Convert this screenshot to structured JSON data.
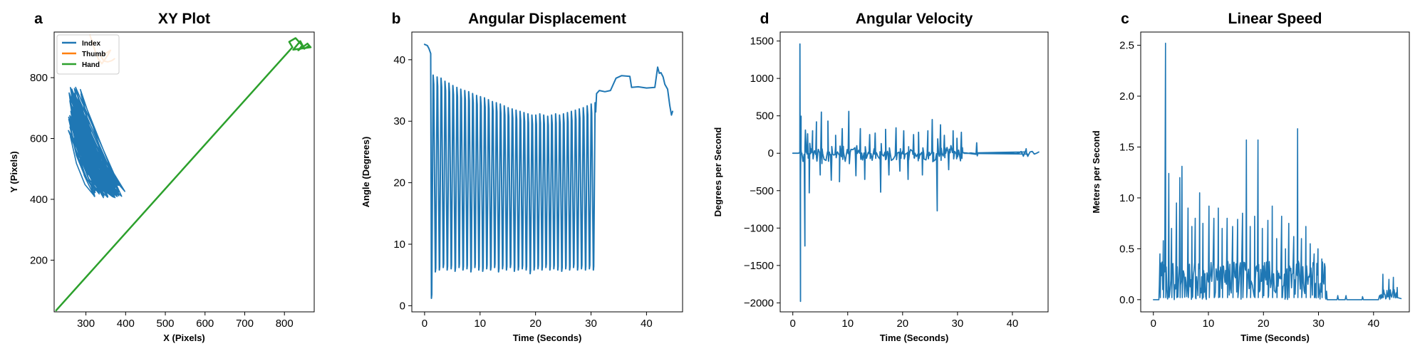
{
  "chart_data": [
    {
      "type": "line",
      "panel_letter": "a",
      "title": "XY Plot",
      "xlabel": "X (Pixels)",
      "ylabel": "Y (Pixels)",
      "xlim": [
        220,
        875
      ],
      "ylim": [
        30,
        950
      ],
      "xticks": [
        300,
        400,
        500,
        600,
        700,
        800
      ],
      "yticks": [
        200,
        400,
        600,
        800
      ],
      "legend": "top-left",
      "series": [
        {
          "name": "Index",
          "color": "#1f77b4",
          "kind": "index-band"
        },
        {
          "name": "Thumb",
          "color": "#ff7f0e",
          "points": [
            [
              310,
              940
            ],
            [
              318,
              910
            ],
            [
              325,
              880
            ],
            [
              332,
              860
            ],
            [
              340,
              846
            ],
            [
              348,
              860
            ],
            [
              356,
              876
            ],
            [
              362,
              890
            ],
            [
              350,
              880
            ],
            [
              338,
              870
            ],
            [
              345,
              855
            ],
            [
              355,
              852
            ],
            [
              365,
              856
            ],
            [
              372,
              862
            ]
          ]
        },
        {
          "name": "Hand",
          "color": "#2ca02c",
          "points": [
            [
              225,
              35
            ],
            [
              820,
              900
            ],
            [
              812,
              918
            ],
            [
              828,
              930
            ],
            [
              845,
              906
            ],
            [
              835,
              890
            ],
            [
              858,
              912
            ],
            [
              866,
              900
            ],
            [
              822,
              892
            ],
            [
              840,
              920
            ],
            [
              850,
              895
            ],
            [
              862,
              905
            ]
          ]
        }
      ]
    },
    {
      "type": "line",
      "panel_letter": "b",
      "title": "Angular Displacement",
      "xlabel": "Time (Seconds)",
      "ylabel": "Angle (Degrees)",
      "xlim": [
        -2.3,
        46.5
      ],
      "ylim": [
        -1,
        44.5
      ],
      "xticks": [
        0,
        10,
        20,
        30,
        40
      ],
      "yticks": [
        0,
        10,
        20,
        30,
        40
      ],
      "color": "#1f77b4",
      "start": [
        [
          0,
          42.5
        ],
        [
          0.5,
          42.3
        ],
        [
          0.8,
          41.8
        ],
        [
          1.1,
          41
        ]
      ],
      "oscillation": {
        "t_start": 1.1,
        "t_end": 31.0,
        "cycles": 42,
        "peaks": [
          37.5,
          37.2,
          37,
          36.5,
          36.2,
          35.8,
          35.5,
          35.2,
          35,
          34.8,
          34.5,
          34.2,
          34,
          33.8,
          33.5,
          33.2,
          33,
          32.8,
          32.5,
          32.2,
          32,
          31.8,
          31.6,
          31.4,
          31.2,
          31,
          31,
          31.2,
          31,
          30.8,
          31,
          31.2,
          31,
          31.2,
          31.4,
          31.6,
          31.8,
          32,
          32.2,
          32.5,
          32.8,
          33
        ],
        "troughs": [
          1.2,
          5.5,
          5.8,
          6.2,
          5.8,
          6,
          5.6,
          6.2,
          5.8,
          6,
          5.5,
          6.2,
          5.8,
          5.6,
          6,
          5.8,
          6.2,
          5.5,
          6,
          5.8,
          6.2,
          5.6,
          5.8,
          6,
          5.8,
          5.2,
          5.8,
          6,
          5.8,
          6.2,
          5.8,
          6,
          5.8,
          5.6,
          6,
          5.8,
          6.2,
          5.8,
          6,
          5.8,
          6,
          5.8
        ]
      },
      "tail": [
        [
          31.0,
          34.5
        ],
        [
          31.5,
          35.0
        ],
        [
          32.5,
          34.8
        ],
        [
          33.5,
          35.0
        ],
        [
          34.5,
          37.0
        ],
        [
          35.5,
          37.4
        ],
        [
          37.0,
          37.3
        ],
        [
          37.3,
          35.5
        ],
        [
          38.5,
          35.6
        ],
        [
          40.0,
          35.4
        ],
        [
          41.5,
          35.5
        ],
        [
          42.0,
          38.8
        ],
        [
          42.3,
          37.8
        ],
        [
          42.6,
          37.9
        ],
        [
          43.0,
          37.2
        ],
        [
          43.3,
          36.0
        ],
        [
          43.8,
          35.2
        ],
        [
          44.2,
          32.5
        ],
        [
          44.5,
          31.0
        ],
        [
          44.7,
          31.6
        ]
      ]
    },
    {
      "type": "line",
      "panel_letter": "d",
      "title": "Angular Velocity",
      "xlabel": "Time (Seconds)",
      "ylabel": "Degrees per Second",
      "xlim": [
        -2.3,
        46.5
      ],
      "ylim": [
        -2120,
        1620
      ],
      "xticks": [
        0,
        10,
        20,
        30,
        40
      ],
      "yticks": [
        -2000,
        -1500,
        -1000,
        -500,
        0,
        500,
        1000,
        1500
      ],
      "color": "#1f77b4",
      "spikes": [
        [
          1.3,
          1460
        ],
        [
          1.4,
          -1980
        ],
        [
          2.2,
          -1240
        ],
        [
          2.7,
          260
        ],
        [
          3.0,
          -530
        ],
        [
          3.6,
          300
        ],
        [
          4.3,
          420
        ],
        [
          5.0,
          -290
        ],
        [
          5.2,
          550
        ],
        [
          6.4,
          430
        ],
        [
          7.0,
          -360
        ],
        [
          7.8,
          240
        ],
        [
          8.5,
          -380
        ],
        [
          9.0,
          330
        ],
        [
          10.2,
          560
        ],
        [
          11.5,
          -300
        ],
        [
          12.3,
          330
        ],
        [
          13.1,
          -350
        ],
        [
          14.0,
          250
        ],
        [
          15.0,
          270
        ],
        [
          16.0,
          -520
        ],
        [
          16.9,
          320
        ],
        [
          17.5,
          -290
        ],
        [
          18.8,
          340
        ],
        [
          19.5,
          -240
        ],
        [
          20.2,
          300
        ],
        [
          21.0,
          -350
        ],
        [
          22.0,
          250
        ],
        [
          22.9,
          280
        ],
        [
          23.6,
          -290
        ],
        [
          24.6,
          300
        ],
        [
          25.4,
          450
        ],
        [
          26.3,
          -770
        ],
        [
          26.9,
          380
        ],
        [
          27.6,
          240
        ],
        [
          28.4,
          -220
        ],
        [
          29.2,
          300
        ],
        [
          29.9,
          200
        ],
        [
          30.7,
          280
        ],
        [
          33.5,
          140
        ],
        [
          42.5,
          60
        ]
      ]
    },
    {
      "type": "line",
      "panel_letter": "c",
      "title": "Linear Speed",
      "xlabel": "Time (Seconds)",
      "ylabel": "Meters per Second",
      "xlim": [
        -2.3,
        46.5
      ],
      "ylim": [
        -0.12,
        2.63
      ],
      "xticks": [
        0,
        10,
        20,
        30,
        40
      ],
      "yticks": [
        0.0,
        0.5,
        1.0,
        1.5,
        2.0,
        2.5
      ],
      "color": "#1f77b4",
      "peaks": [
        [
          1.2,
          0.45
        ],
        [
          1.8,
          0.58
        ],
        [
          2.2,
          2.52
        ],
        [
          2.8,
          1.24
        ],
        [
          3.3,
          0.7
        ],
        [
          4.2,
          0.95
        ],
        [
          4.8,
          1.2
        ],
        [
          5.2,
          1.31
        ],
        [
          6.3,
          0.9
        ],
        [
          7.0,
          0.72
        ],
        [
          7.6,
          0.8
        ],
        [
          8.4,
          1.05
        ],
        [
          9.0,
          0.75
        ],
        [
          10.1,
          0.92
        ],
        [
          11.0,
          0.8
        ],
        [
          11.8,
          0.9
        ],
        [
          12.5,
          0.7
        ],
        [
          13.4,
          0.8
        ],
        [
          14.4,
          0.72
        ],
        [
          15.3,
          0.79
        ],
        [
          16.2,
          0.85
        ],
        [
          16.9,
          1.57
        ],
        [
          17.6,
          0.72
        ],
        [
          18.4,
          0.82
        ],
        [
          19.0,
          1.57
        ],
        [
          19.8,
          0.7
        ],
        [
          20.8,
          0.78
        ],
        [
          21.6,
          0.92
        ],
        [
          22.4,
          0.6
        ],
        [
          23.3,
          0.82
        ],
        [
          24.0,
          0.5
        ],
        [
          24.6,
          0.75
        ],
        [
          25.5,
          0.62
        ],
        [
          26.2,
          1.68
        ],
        [
          26.9,
          0.6
        ],
        [
          27.7,
          0.72
        ],
        [
          28.5,
          0.55
        ],
        [
          29.2,
          0.45
        ],
        [
          29.9,
          0.5
        ],
        [
          30.6,
          0.4
        ],
        [
          31.2,
          0.32
        ],
        [
          33.5,
          0.04
        ],
        [
          35.0,
          0.04
        ],
        [
          38.0,
          0.03
        ],
        [
          41.7,
          0.25
        ],
        [
          42.8,
          0.2
        ],
        [
          43.6,
          0.22
        ],
        [
          44.3,
          0.12
        ]
      ]
    }
  ]
}
